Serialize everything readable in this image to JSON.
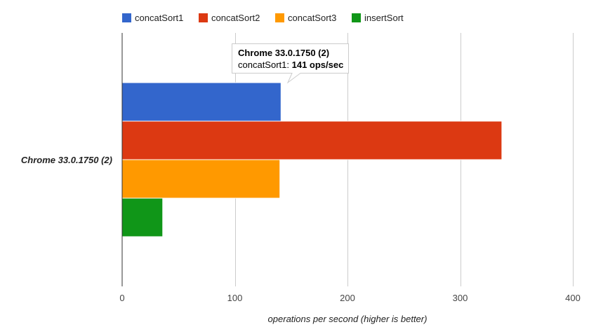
{
  "chart_data": {
    "type": "bar",
    "orientation": "horizontal",
    "categories": [
      "Chrome 33.0.1750 (2)"
    ],
    "series": [
      {
        "name": "concatSort1",
        "color": "#3366cc",
        "values": [
          141
        ]
      },
      {
        "name": "concatSort2",
        "color": "#dc3912",
        "values": [
          337
        ]
      },
      {
        "name": "concatSort3",
        "color": "#ff9900",
        "values": [
          140
        ]
      },
      {
        "name": "insertSort",
        "color": "#109618",
        "values": [
          36
        ]
      }
    ],
    "xlabel": "operations per second (higher is better)",
    "xlim": [
      0,
      400
    ],
    "xticks": [
      0,
      100,
      200,
      300,
      400
    ],
    "grid": true,
    "legend_position": "top",
    "tooltip": {
      "title": "Chrome 33.0.1750 (2)",
      "series_label": "concatSort1: ",
      "value_label": "141 ops/sec"
    }
  }
}
